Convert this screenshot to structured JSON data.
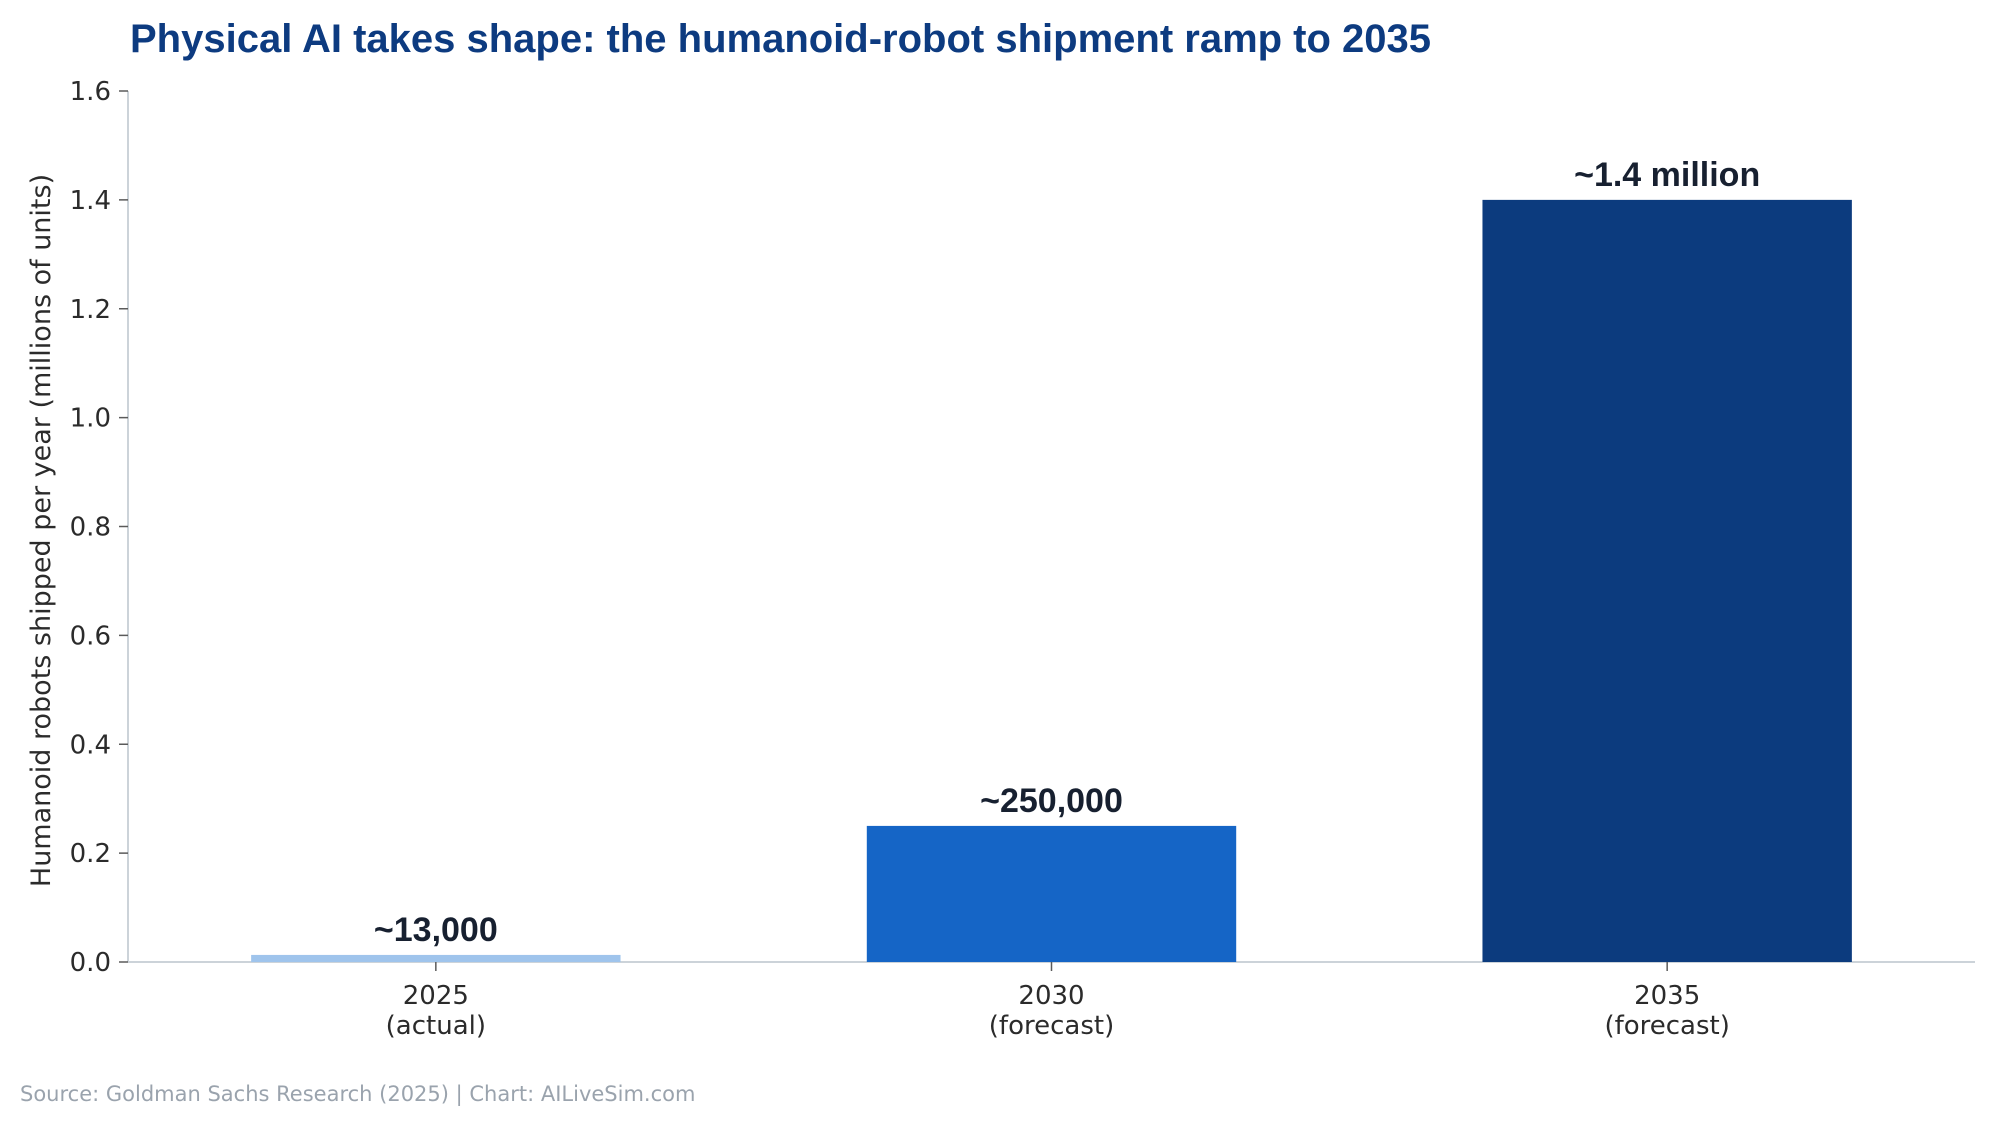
{
  "chart_data": {
    "type": "bar",
    "title": "Physical AI takes shape: the humanoid-robot shipment ramp to 2035",
    "xlabel": "",
    "ylabel": "Humanoid robots shipped per year (millions of units)",
    "ylim": [
      0,
      1.6
    ],
    "yticks": [
      "0.0",
      "0.2",
      "0.4",
      "0.6",
      "0.8",
      "1.0",
      "1.2",
      "1.4",
      "1.6"
    ],
    "categories": [
      {
        "line1": "2025",
        "line2": "(actual)"
      },
      {
        "line1": "2030",
        "line2": "(forecast)"
      },
      {
        "line1": "2035",
        "line2": "(forecast)"
      }
    ],
    "values": [
      0.013,
      0.25,
      1.4
    ],
    "data_labels": [
      "~13,000",
      "~250,000",
      "~1.4 million"
    ],
    "colors": [
      "#9fc4ec",
      "#1565c6",
      "#0c3b7e"
    ],
    "grid": false,
    "legend": "none"
  },
  "source": "Source: Goldman Sachs Research (2025)  |  Chart: AILiveSim.com"
}
